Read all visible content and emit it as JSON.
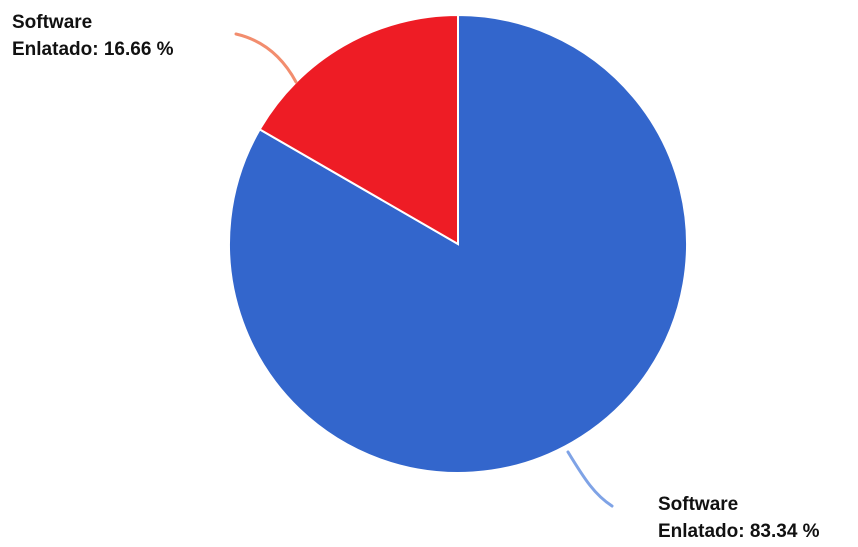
{
  "chart_data": {
    "type": "pie",
    "title": "",
    "start_angle_deg": 0,
    "direction": "clockwise",
    "slices": [
      {
        "label_line1": "Software",
        "label_line2": "Enlatado: 83.34 %",
        "value": 83.34,
        "color": "#3366cc"
      },
      {
        "label_line1": "Software",
        "label_line2": "Enlatado: 16.66 %",
        "value": 16.66,
        "color": "#ee1c25"
      }
    ]
  }
}
